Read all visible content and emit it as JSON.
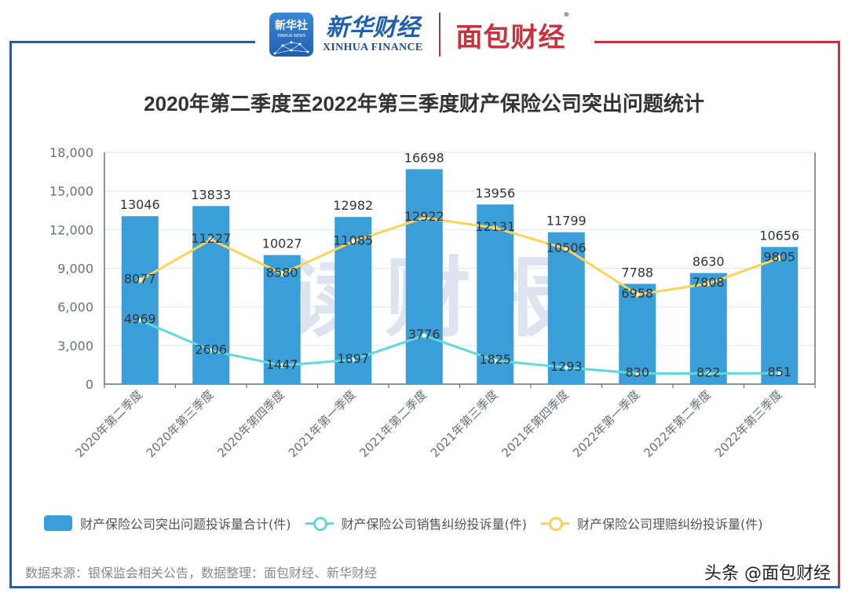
{
  "logos": {
    "xinhua_app_cn": "新华社",
    "xinhua_app_en": "XINHUA NEWS",
    "xinhua_finance_cn": "新华财经",
    "xinhua_finance_en": "XINHUA FINANCE",
    "mianbao": "面包财经",
    "registered_mark": "®"
  },
  "colors": {
    "bar": "#3a9fd8",
    "sales_line": "#5fd8de",
    "claims_line": "#f8d55a",
    "frame_blue": "#2d5aa0",
    "frame_red": "#c8323c"
  },
  "chart_data": {
    "type": "bar",
    "title": "2020年第二季度至2022年第三季度财产保险公司突出问题统计",
    "xlabel": "",
    "ylabel": "",
    "ylim": [
      0,
      18000
    ],
    "yticks": [
      0,
      3000,
      6000,
      9000,
      12000,
      15000,
      18000
    ],
    "ytick_labels": [
      "0",
      "3,000",
      "6,000",
      "9,000",
      "12,000",
      "15,000",
      "18,000"
    ],
    "grid": true,
    "legend_position": "bottom",
    "categories": [
      "2020年第二季度",
      "2020年第三季度",
      "2020年第四季度",
      "2021年第一季度",
      "2021年第二季度",
      "2021年第三季度",
      "2021年第四季度",
      "2022年第一季度",
      "2022年第二季度",
      "2022年第三季度"
    ],
    "series": [
      {
        "name": "财产保险公司突出问题投诉量合计(件)",
        "type": "bar",
        "values": [
          13046,
          13833,
          10027,
          12982,
          16698,
          13956,
          11799,
          7788,
          8630,
          10656
        ]
      },
      {
        "name": "财产保险公司销售纠纷投诉量(件)",
        "type": "line",
        "values": [
          4969,
          2606,
          1447,
          1897,
          3776,
          1825,
          1293,
          830,
          822,
          851
        ]
      },
      {
        "name": "财产保险公司理赔纠纷投诉量(件)",
        "type": "line",
        "values": [
          8077,
          11227,
          8580,
          11085,
          12922,
          12131,
          10506,
          6958,
          7808,
          9805
        ]
      }
    ],
    "watermark": "读财报"
  },
  "footer": {
    "source": "数据来源：银保监会相关公告，数据整理：面包财经、新华财经",
    "toutiao": "头条 @面包财经"
  }
}
